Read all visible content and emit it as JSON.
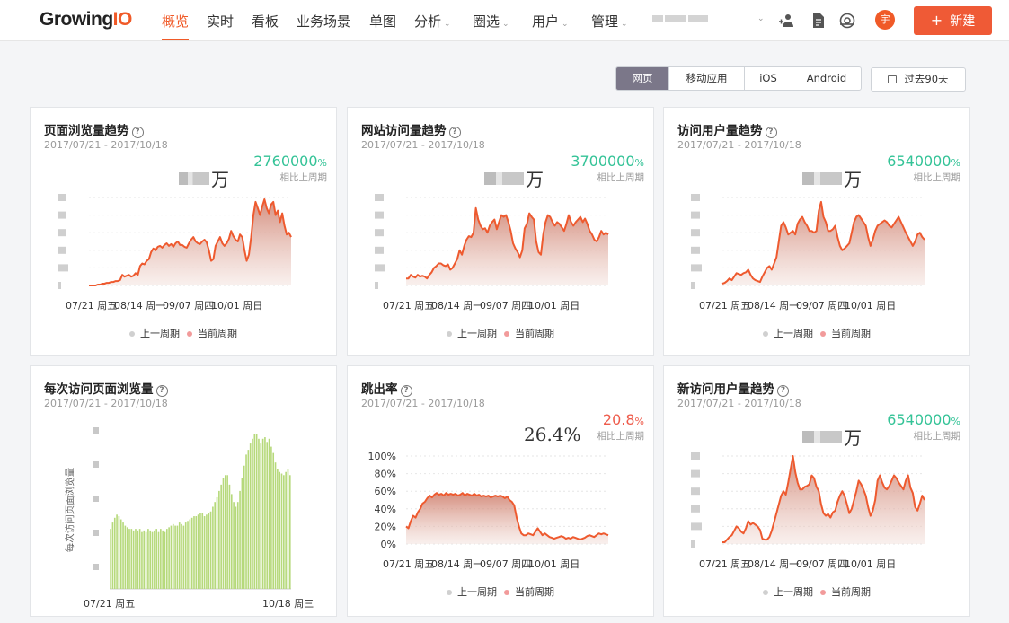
{
  "brand": {
    "name_a": "Growing",
    "name_b": "IO"
  },
  "colors": {
    "accent": "#f05a28",
    "positive": "#34c397",
    "negative": "#ee5c4c",
    "line": "#ee5a2f",
    "bars": "#b6d97b"
  },
  "nav": {
    "items": [
      {
        "label": "概览",
        "caret": ""
      },
      {
        "label": "实时",
        "caret": ""
      },
      {
        "label": "看板",
        "caret": ""
      },
      {
        "label": "业务场景",
        "caret": ""
      },
      {
        "label": "单图",
        "caret": ""
      },
      {
        "label": "分析",
        "caret": "⌄"
      },
      {
        "label": "圈选",
        "caret": "⌄"
      },
      {
        "label": "用户",
        "caret": "⌄"
      },
      {
        "label": "管理",
        "caret": "⌄"
      }
    ],
    "project_caret": "⌄",
    "icons": [
      "add-user-icon",
      "document-icon",
      "eye-icon"
    ],
    "avatar": "宇",
    "new_button": {
      "plus": "+",
      "label": "新建"
    }
  },
  "toolbar": {
    "platforms": [
      "网页",
      "移动应用",
      "iOS",
      "Android"
    ],
    "selected_platform": "网页",
    "range_label": "过去90天"
  },
  "common": {
    "help": "?",
    "compare_label": "相比上周期",
    "legend_prev": "上一周期",
    "legend_curr": "当前周期"
  },
  "cards": [
    {
      "title": "页面浏览量趋势",
      "date": "2017/07/21 - 2017/10/18",
      "value_unit": "万",
      "change": "2760000",
      "change_unit": "%",
      "trend": "up",
      "x_labels": [
        "07/21 周五",
        "08/14 周一",
        "09/07 周四",
        "10/01 周日"
      ]
    },
    {
      "title": "网站访问量趋势",
      "date": "2017/07/21 - 2017/10/18",
      "value_unit": "万",
      "change": "3700000",
      "change_unit": "%",
      "trend": "up",
      "x_labels": [
        "07/21 周五",
        "08/14 周一",
        "09/07 周四",
        "10/01 周日"
      ]
    },
    {
      "title": "访问用户量趋势",
      "date": "2017/07/21 - 2017/10/18",
      "value_unit": "万",
      "change": "6540000",
      "change_unit": "%",
      "trend": "up",
      "x_labels": [
        "07/21 周五",
        "08/14 周一",
        "09/07 周四",
        "10/01 周日"
      ]
    },
    {
      "title": "每次访问页面浏览量",
      "date": "2017/07/21 - 2017/10/18",
      "ylabel": "每次访问页面浏览量",
      "x_labels": [
        "07/21 周五",
        "10/18 周三"
      ]
    },
    {
      "title": "跳出率",
      "date": "2017/07/21 - 2017/10/18",
      "value": "26.4%",
      "change": "20.8",
      "change_unit": "%",
      "trend": "down",
      "y_labels": [
        "100%",
        "80%",
        "60%",
        "40%",
        "20%",
        "0%"
      ],
      "x_labels": [
        "07/21 周五",
        "08/14 周一",
        "09/07 周四",
        "10/01 周日"
      ]
    },
    {
      "title": "新访问用户量趋势",
      "date": "2017/07/21 - 2017/10/18",
      "value_unit": "万",
      "change": "6540000",
      "change_unit": "%",
      "trend": "up",
      "x_labels": [
        "07/21 周五",
        "08/14 周一",
        "09/07 周四",
        "10/01 周日"
      ]
    }
  ],
  "chart_data": [
    {
      "type": "area",
      "title": "页面浏览量趋势",
      "x_ticks": [
        "07/21 周五",
        "08/14 周一",
        "09/07 周四",
        "10/01 周日"
      ],
      "ylim": [
        0,
        1
      ],
      "series": [
        {
          "name": "当前周期",
          "values": [
            0.0,
            0.0,
            0.0,
            0.0,
            0.01,
            0.01,
            0.02,
            0.02,
            0.03,
            0.03,
            0.04,
            0.04,
            0.05,
            0.05,
            0.06,
            0.12,
            0.1,
            0.11,
            0.12,
            0.1,
            0.11,
            0.14,
            0.12,
            0.22,
            0.25,
            0.24,
            0.28,
            0.3,
            0.38,
            0.42,
            0.4,
            0.44,
            0.45,
            0.43,
            0.46,
            0.48,
            0.45,
            0.47,
            0.44,
            0.48,
            0.5,
            0.46,
            0.46,
            0.44,
            0.43,
            0.48,
            0.52,
            0.55,
            0.5,
            0.48,
            0.47,
            0.5,
            0.52,
            0.49,
            0.4,
            0.28,
            0.3,
            0.45,
            0.5,
            0.55,
            0.48,
            0.45,
            0.48,
            0.53,
            0.62,
            0.56,
            0.52,
            0.5,
            0.58,
            0.55,
            0.4,
            0.28,
            0.35,
            0.55,
            0.8,
            0.95,
            0.88,
            0.8,
            0.9,
            0.98,
            0.88,
            0.82,
            0.92,
            0.95,
            0.8,
            0.85,
            0.72,
            0.82,
            0.68,
            0.58,
            0.6,
            0.55
          ]
        }
      ]
    },
    {
      "type": "area",
      "title": "网站访问量趋势",
      "x_ticks": [
        "07/21 周五",
        "08/14 周一",
        "09/07 周四",
        "10/01 周日"
      ],
      "ylim": [
        0,
        1
      ],
      "series": [
        {
          "name": "当前周期",
          "values": [
            0.08,
            0.08,
            0.12,
            0.1,
            0.09,
            0.12,
            0.1,
            0.11,
            0.1,
            0.08,
            0.12,
            0.15,
            0.2,
            0.22,
            0.25,
            0.25,
            0.23,
            0.22,
            0.24,
            0.18,
            0.2,
            0.25,
            0.3,
            0.4,
            0.35,
            0.45,
            0.52,
            0.56,
            0.55,
            0.6,
            0.88,
            0.75,
            0.68,
            0.64,
            0.65,
            0.6,
            0.68,
            0.72,
            0.75,
            0.64,
            0.72,
            0.8,
            0.78,
            0.8,
            0.72,
            0.62,
            0.48,
            0.42,
            0.38,
            0.32,
            0.4,
            0.65,
            0.7,
            0.82,
            0.78,
            0.75,
            0.5,
            0.38,
            0.35,
            0.58,
            0.72,
            0.8,
            0.78,
            0.72,
            0.68,
            0.72,
            0.7,
            0.66,
            0.62,
            0.7,
            0.8,
            0.72,
            0.68,
            0.72,
            0.75,
            0.78,
            0.72,
            0.76,
            0.7,
            0.62,
            0.58,
            0.52,
            0.5,
            0.55,
            0.62,
            0.58,
            0.6,
            0.58
          ]
        }
      ]
    },
    {
      "type": "area",
      "title": "访问用户量趋势",
      "x_ticks": [
        "07/21 周五",
        "08/14 周一",
        "09/07 周四",
        "10/01 周日"
      ],
      "ylim": [
        0,
        1
      ],
      "series": [
        {
          "name": "当前周期",
          "values": [
            0.02,
            0.03,
            0.05,
            0.08,
            0.06,
            0.1,
            0.14,
            0.13,
            0.12,
            0.14,
            0.15,
            0.18,
            0.12,
            0.08,
            0.06,
            0.05,
            0.04,
            0.1,
            0.15,
            0.2,
            0.22,
            0.18,
            0.25,
            0.32,
            0.5,
            0.68,
            0.72,
            0.66,
            0.58,
            0.6,
            0.62,
            0.58,
            0.7,
            0.75,
            0.78,
            0.72,
            0.68,
            0.62,
            0.62,
            0.6,
            0.62,
            0.85,
            0.95,
            0.78,
            0.72,
            0.62,
            0.62,
            0.64,
            0.68,
            0.55,
            0.45,
            0.4,
            0.42,
            0.45,
            0.48,
            0.6,
            0.72,
            0.78,
            0.8,
            0.76,
            0.72,
            0.68,
            0.55,
            0.45,
            0.52,
            0.62,
            0.68,
            0.7,
            0.72,
            0.74,
            0.72,
            0.68,
            0.66,
            0.7,
            0.74,
            0.78,
            0.72,
            0.66,
            0.6,
            0.55,
            0.5,
            0.45,
            0.5,
            0.58,
            0.6,
            0.55,
            0.52
          ]
        }
      ]
    },
    {
      "type": "bar",
      "title": "每次访问页面浏览量",
      "ylabel": "每次访问页面浏览量",
      "x_ticks": [
        "07/21 周五",
        "10/18 周三"
      ],
      "ylim": [
        0,
        1
      ],
      "series": [
        {
          "name": "当前周期",
          "values": [
            0.38,
            0.42,
            0.45,
            0.47,
            0.46,
            0.44,
            0.42,
            0.4,
            0.39,
            0.38,
            0.38,
            0.37,
            0.38,
            0.37,
            0.38,
            0.36,
            0.37,
            0.36,
            0.38,
            0.37,
            0.36,
            0.37,
            0.38,
            0.36,
            0.38,
            0.37,
            0.36,
            0.38,
            0.39,
            0.4,
            0.41,
            0.4,
            0.4,
            0.42,
            0.41,
            0.4,
            0.42,
            0.43,
            0.44,
            0.45,
            0.46,
            0.46,
            0.47,
            0.48,
            0.48,
            0.46,
            0.47,
            0.48,
            0.49,
            0.52,
            0.55,
            0.58,
            0.62,
            0.66,
            0.7,
            0.72,
            0.72,
            0.66,
            0.6,
            0.55,
            0.52,
            0.55,
            0.62,
            0.7,
            0.78,
            0.85,
            0.88,
            0.92,
            0.95,
            0.98,
            0.98,
            0.95,
            0.92,
            0.95,
            0.96,
            0.93,
            0.95,
            0.9,
            0.86,
            0.8,
            0.76,
            0.74,
            0.73,
            0.72,
            0.74,
            0.76,
            0.72
          ]
        }
      ]
    },
    {
      "type": "area",
      "title": "跳出率",
      "x_ticks": [
        "07/21 周五",
        "08/14 周一",
        "09/07 周四",
        "10/01 周日"
      ],
      "y_ticks": [
        "100%",
        "80%",
        "60%",
        "40%",
        "20%",
        "0%"
      ],
      "ylim": [
        0,
        100
      ],
      "series": [
        {
          "name": "当前周期",
          "values": [
            20,
            18,
            26,
            32,
            30,
            36,
            40,
            46,
            48,
            52,
            55,
            53,
            56,
            58,
            56,
            57,
            55,
            58,
            56,
            57,
            56,
            57,
            55,
            56,
            58,
            55,
            57,
            56,
            55,
            57,
            55,
            56,
            54,
            55,
            54,
            55,
            53,
            54,
            55,
            54,
            55,
            54,
            52,
            54,
            50,
            48,
            44,
            30,
            20,
            12,
            10,
            10,
            12,
            11,
            10,
            14,
            18,
            14,
            10,
            12,
            10,
            8,
            7,
            6,
            7,
            8,
            9,
            8,
            6,
            7,
            6,
            8,
            7,
            6,
            5,
            6,
            7,
            9,
            10,
            9,
            8,
            10,
            12,
            11,
            12,
            11,
            10
          ]
        }
      ]
    },
    {
      "type": "area",
      "title": "新访问用户量趋势",
      "x_ticks": [
        "07/21 周五",
        "08/14 周一",
        "09/07 周四",
        "10/01 周日"
      ],
      "ylim": [
        0,
        1
      ],
      "series": [
        {
          "name": "当前周期",
          "values": [
            0.02,
            0.02,
            0.05,
            0.08,
            0.1,
            0.15,
            0.2,
            0.18,
            0.14,
            0.12,
            0.18,
            0.26,
            0.22,
            0.24,
            0.22,
            0.2,
            0.16,
            0.06,
            0.05,
            0.05,
            0.08,
            0.15,
            0.25,
            0.35,
            0.45,
            0.55,
            0.6,
            0.56,
            0.7,
            0.85,
            1.0,
            0.82,
            0.7,
            0.62,
            0.62,
            0.65,
            0.66,
            0.68,
            0.78,
            0.75,
            0.65,
            0.6,
            0.45,
            0.35,
            0.32,
            0.34,
            0.3,
            0.36,
            0.38,
            0.48,
            0.55,
            0.6,
            0.55,
            0.45,
            0.35,
            0.4,
            0.5,
            0.6,
            0.72,
            0.68,
            0.62,
            0.55,
            0.42,
            0.32,
            0.38,
            0.5,
            0.72,
            0.78,
            0.7,
            0.64,
            0.62,
            0.66,
            0.72,
            0.78,
            0.75,
            0.7,
            0.66,
            0.62,
            0.72,
            0.78,
            0.64,
            0.58,
            0.42,
            0.38,
            0.46,
            0.55,
            0.5
          ]
        }
      ]
    }
  ]
}
